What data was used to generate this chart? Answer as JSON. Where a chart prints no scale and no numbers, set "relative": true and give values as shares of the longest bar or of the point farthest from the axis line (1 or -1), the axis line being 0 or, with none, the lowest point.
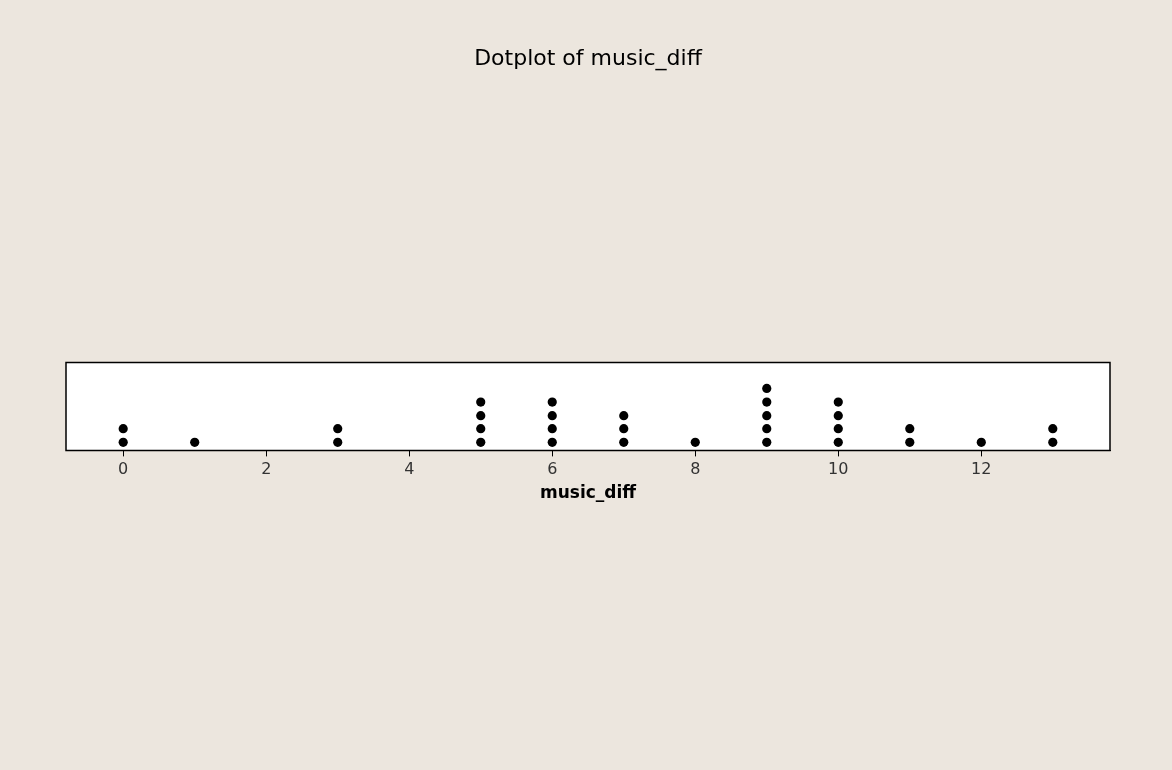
{
  "chart_data": {
    "type": "scatter",
    "title": "Dotplot of music_diff",
    "xlabel": "music_diff",
    "relative": true,
    "marker": "circle",
    "grid": false,
    "legend": false,
    "tick_labels": "x",
    "xlim": [
      -0.8,
      13.8
    ],
    "xticks": [
      0,
      2,
      4,
      6,
      8,
      10,
      12
    ],
    "series": [
      {
        "color": "#000000",
        "x": [
          0,
          0,
          1,
          3,
          3,
          5,
          5,
          5,
          5,
          6,
          6,
          6,
          6,
          7,
          7,
          7,
          8,
          9,
          9,
          9,
          9,
          9,
          10,
          10,
          10,
          10,
          11,
          11,
          12,
          13,
          13
        ],
        "values": [
          0.13,
          0.35,
          0.13,
          0.13,
          0.35,
          0.13,
          0.35,
          0.56,
          0.78,
          0.13,
          0.35,
          0.56,
          0.78,
          0.13,
          0.35,
          0.56,
          0.13,
          0.13,
          0.35,
          0.56,
          0.78,
          1,
          0.13,
          0.35,
          0.56,
          0.78,
          0.13,
          0.35,
          0.13,
          0.13,
          0.35
        ]
      }
    ]
  }
}
